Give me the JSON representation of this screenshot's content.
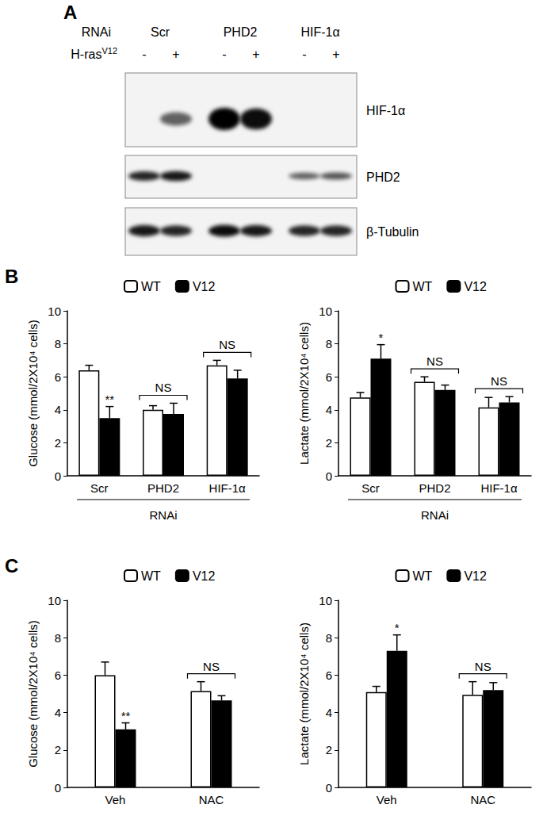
{
  "blot": {
    "panel": "A",
    "row_label": "RNAi",
    "treatment_label": "H-ras",
    "treatment_sup": "V12",
    "groups": [
      "Scr",
      "PHD2",
      "HIF-1α"
    ],
    "treatments": [
      "-",
      "+"
    ],
    "bands": [
      {
        "name": "HIF-1α",
        "intensity": [
          0,
          0.6,
          1,
          0.95,
          0,
          0
        ]
      },
      {
        "name": "PHD2",
        "intensity": [
          0.85,
          0.9,
          0,
          0,
          0.6,
          0.65
        ]
      },
      {
        "name": "β-Tubulin",
        "intensity": [
          0.9,
          0.85,
          0.95,
          0.9,
          0.85,
          0.85
        ]
      }
    ]
  },
  "chart_data": [
    {
      "panel": "B",
      "type": "bar",
      "ylabel": "Glucose (mmol/2X10⁴ cells)",
      "xlabel": "RNAi",
      "categories": [
        "Scr",
        "PHD2",
        "HIF-1α"
      ],
      "series": [
        {
          "name": "WT",
          "color": "#ffffff",
          "values": [
            6.4,
            4.0,
            6.7
          ],
          "errors": [
            0.3,
            0.25,
            0.3
          ]
        },
        {
          "name": "V12",
          "color": "#000000",
          "values": [
            3.5,
            3.75,
            5.9
          ],
          "errors": [
            0.7,
            0.65,
            0.5
          ]
        }
      ],
      "ylim": [
        0,
        10
      ],
      "yticks": [
        0,
        2,
        4,
        6,
        8,
        10
      ],
      "legend": "top",
      "annotations": [
        {
          "text": "**",
          "category": "Scr",
          "series": "V12"
        },
        {
          "text": "NS",
          "category": "PHD2"
        },
        {
          "text": "NS",
          "category": "HIF-1α"
        }
      ]
    },
    {
      "type": "bar",
      "ylabel": "Lactate (mmol/2X10⁴ cells)",
      "xlabel": "RNAi",
      "categories": [
        "Scr",
        "PHD2",
        "HIF-1α"
      ],
      "series": [
        {
          "name": "WT",
          "color": "#ffffff",
          "values": [
            4.75,
            5.7,
            4.15
          ],
          "errors": [
            0.3,
            0.3,
            0.6
          ]
        },
        {
          "name": "V12",
          "color": "#000000",
          "values": [
            7.1,
            5.2,
            4.45
          ],
          "errors": [
            0.85,
            0.3,
            0.35
          ]
        }
      ],
      "ylim": [
        0,
        10
      ],
      "yticks": [
        0,
        2,
        4,
        6,
        8,
        10
      ],
      "legend": "top",
      "annotations": [
        {
          "text": "*",
          "category": "Scr",
          "series": "V12"
        },
        {
          "text": "NS",
          "category": "PHD2"
        },
        {
          "text": "NS",
          "category": "HIF-1α"
        }
      ]
    },
    {
      "panel": "C",
      "type": "bar",
      "ylabel": "Glucose (mmol/2X10⁴ cells)",
      "categories": [
        "Veh",
        "NAC"
      ],
      "series": [
        {
          "name": "WT",
          "color": "#ffffff",
          "values": [
            6.0,
            5.15
          ],
          "errors": [
            0.7,
            0.5
          ]
        },
        {
          "name": "V12",
          "color": "#000000",
          "values": [
            3.1,
            4.65
          ],
          "errors": [
            0.35,
            0.25
          ]
        }
      ],
      "ylim": [
        0,
        10
      ],
      "yticks": [
        0,
        2,
        4,
        6,
        8,
        10
      ],
      "legend": "top",
      "annotations": [
        {
          "text": "**",
          "category": "Veh",
          "series": "V12"
        },
        {
          "text": "NS",
          "category": "NAC"
        }
      ]
    },
    {
      "type": "bar",
      "ylabel": "Lactate (mmol/2X10⁴ cells)",
      "categories": [
        "Veh",
        "NAC"
      ],
      "series": [
        {
          "name": "WT",
          "color": "#ffffff",
          "values": [
            5.1,
            4.95
          ],
          "errors": [
            0.3,
            0.7
          ]
        },
        {
          "name": "V12",
          "color": "#000000",
          "values": [
            7.3,
            5.2
          ],
          "errors": [
            0.85,
            0.4
          ]
        }
      ],
      "ylim": [
        0,
        10
      ],
      "yticks": [
        0,
        2,
        4,
        6,
        8,
        10
      ],
      "legend": "top",
      "annotations": [
        {
          "text": "*",
          "category": "Veh",
          "series": "V12"
        },
        {
          "text": "NS",
          "category": "NAC"
        }
      ]
    }
  ]
}
